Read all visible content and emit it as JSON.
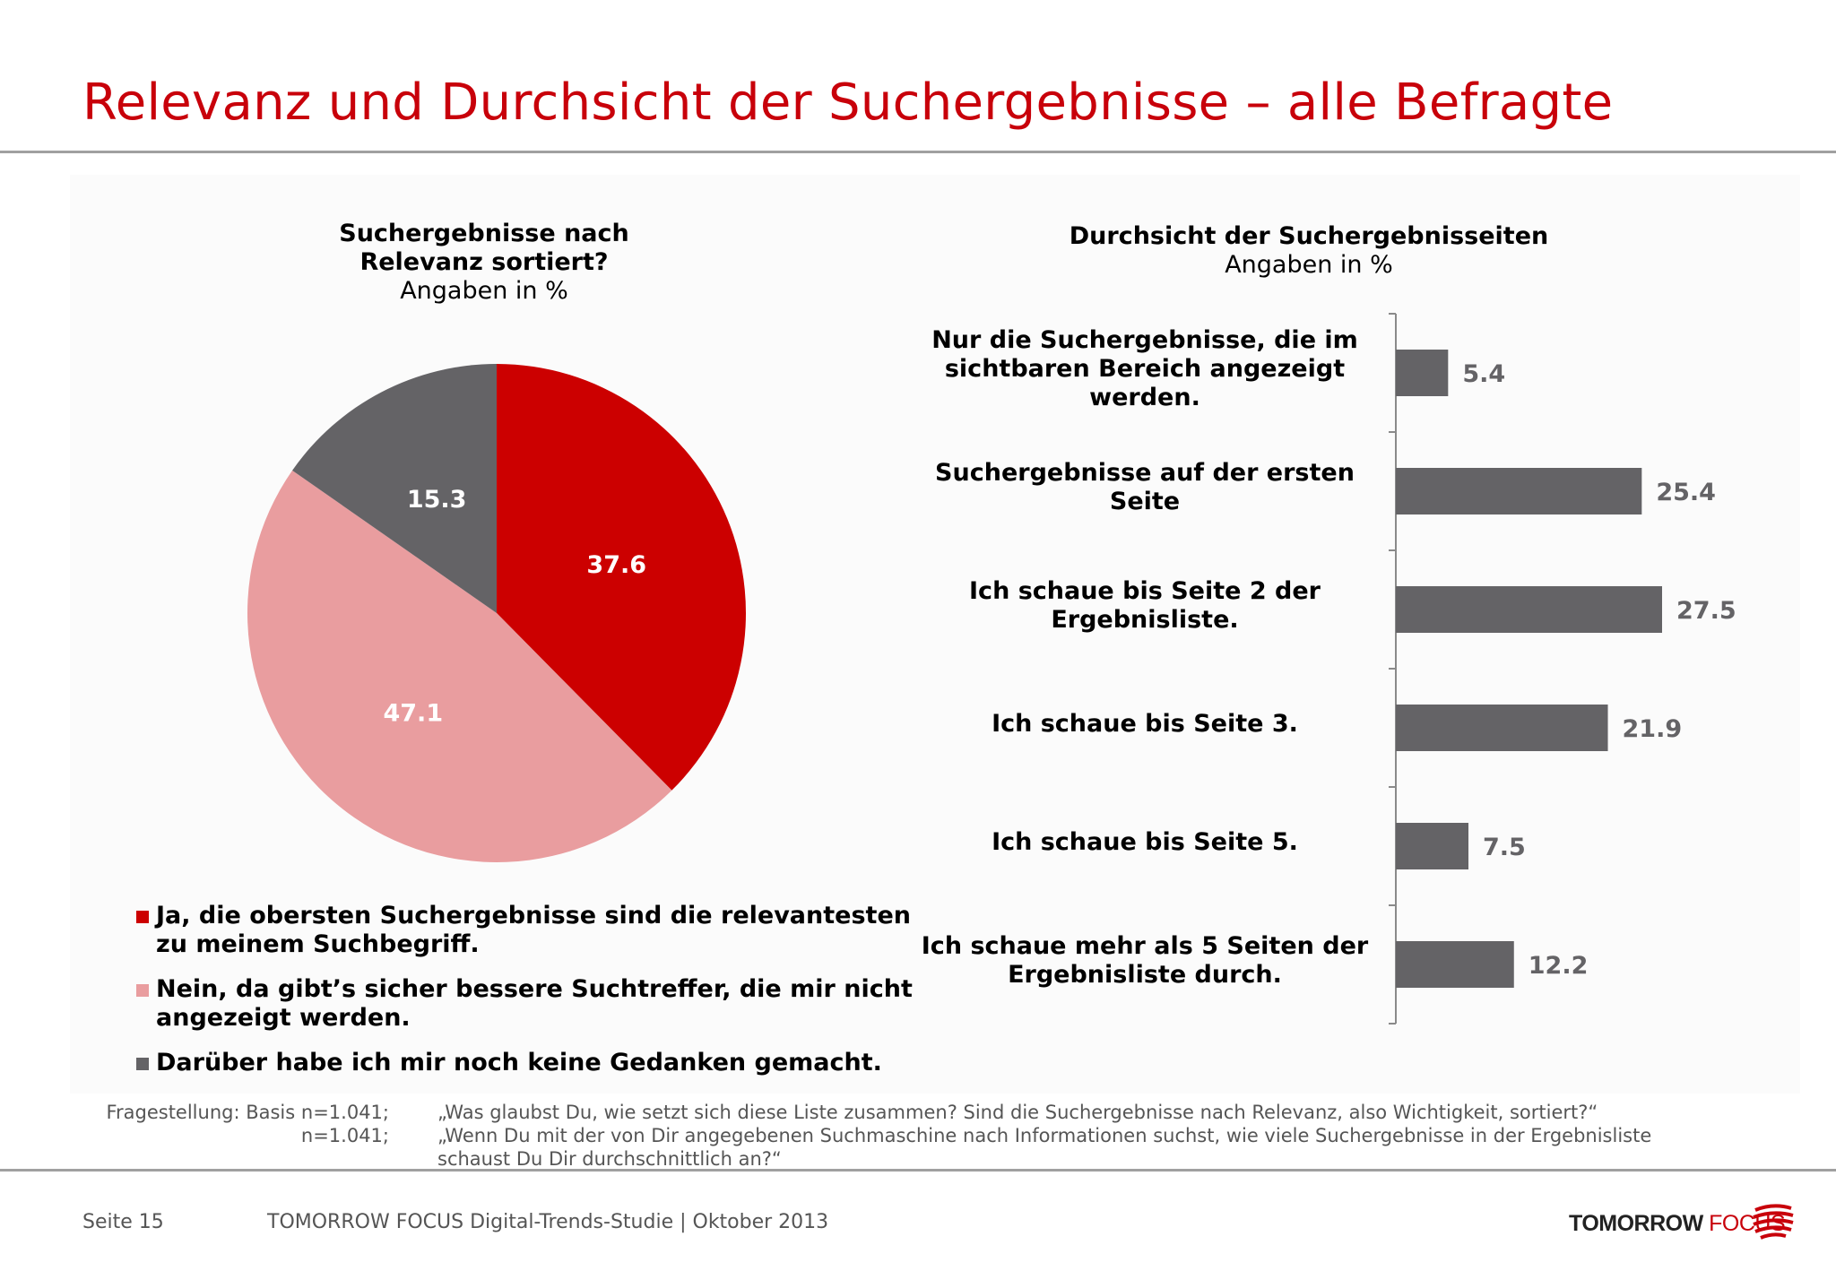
{
  "page": {
    "title": "Relevanz und Durchsicht der Suchergebnisse – alle Befragte",
    "footer_page": "Seite 15",
    "footer_study": "TOMORROW FOCUS Digital-Trends-Studie | Oktober 2013",
    "logo_part1": "TOMORROW",
    "logo_part2": "FOCUS",
    "note_label_1": "Fragestellung: Basis n=1.041;",
    "note_label_2": "n=1.041;",
    "note_text_1": "„Was glaubst Du, wie setzt sich diese Liste zusammen? Sind die Suchergebnisse nach Relevanz, also Wichtigkeit, sortiert?“",
    "note_text_2": "„Wenn Du mit der von Dir angegebenen Suchmaschine nach Informationen suchst, wie viele Suchergebnisse in der Ergebnisliste schaust Du Dir durchschnittlich an?“"
  },
  "chart_data": [
    {
      "type": "pie",
      "title_lines": [
        "Suchergebnisse nach",
        "Relevanz sortiert?"
      ],
      "subtitle": "Angaben in %",
      "slices": [
        {
          "label": "Ja, die obersten Suchergebnisse sind die relevantesten zu meinem Suchbegriff.",
          "value": 37.6,
          "color": "#cc0000"
        },
        {
          "label": "Nein, da gibt’s sicher bessere Suchtreffer, die mir nicht angezeigt werden.",
          "value": 47.1,
          "color": "#e99d9f"
        },
        {
          "label": "Darüber habe ich mir noch keine Gedanken gemacht.",
          "value": 15.3,
          "color": "#646366"
        }
      ],
      "legend_lines": [
        [
          "Ja, die obersten Suchergebnisse sind die relevantesten",
          "zu meinem Suchbegriff."
        ],
        [
          "Nein, da gibt’s sicher bessere Suchtreffer, die mir nicht",
          "angezeigt werden."
        ],
        [
          "Darüber habe ich mir noch keine Gedanken gemacht."
        ]
      ],
      "legend_placement": "bottom"
    },
    {
      "type": "bar",
      "orientation": "horizontal",
      "title": "Durchsicht der Suchergebnisseiten",
      "subtitle": "Angaben in %",
      "bar_color": "#646366",
      "xlim": [
        0,
        40
      ],
      "categories": [
        [
          "Nur die Suchergebnisse, die im",
          "sichtbaren Bereich angezeigt",
          "werden."
        ],
        [
          "Suchergebnisse auf der ersten",
          "Seite"
        ],
        [
          "Ich schaue bis Seite 2 der",
          "Ergebnisliste."
        ],
        [
          "Ich schaue bis Seite 3."
        ],
        [
          "Ich schaue bis Seite 5."
        ],
        [
          "Ich schaue mehr als 5 Seiten der",
          "Ergebnisliste durch."
        ]
      ],
      "values": [
        5.4,
        25.4,
        27.5,
        21.9,
        7.5,
        12.2
      ],
      "labels": [
        "5.4",
        "25.4",
        "27.5",
        "21.9",
        "7.5",
        "12.2"
      ],
      "grid": false
    }
  ]
}
